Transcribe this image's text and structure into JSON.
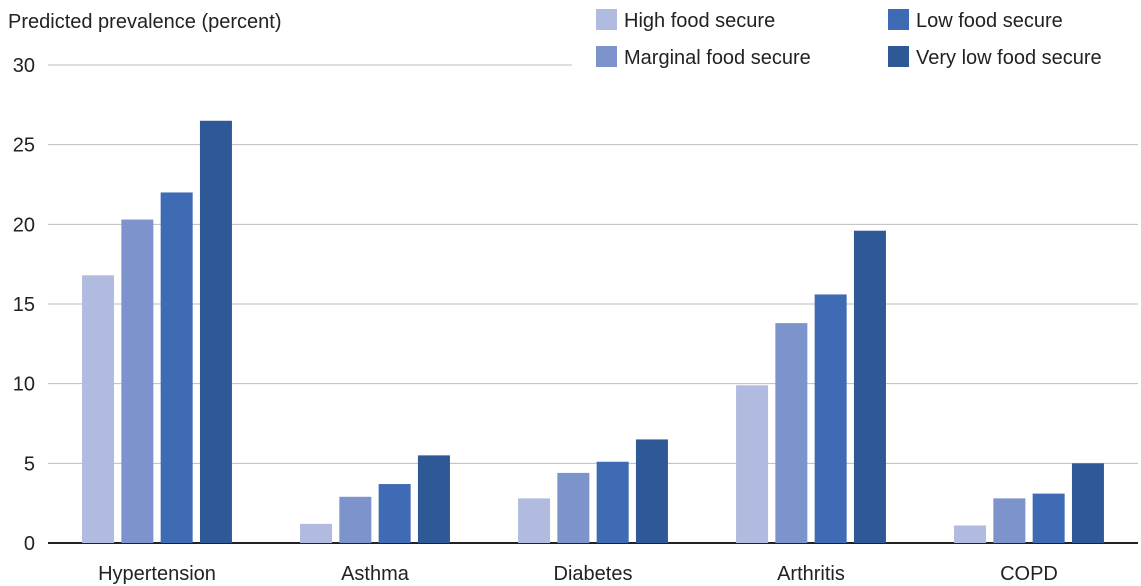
{
  "chart_data": {
    "type": "bar",
    "title": "",
    "ylabel": "Predicted prevalence (percent)",
    "xlabel": "",
    "ylim": [
      0,
      30
    ],
    "yticks": [
      0,
      5,
      10,
      15,
      20,
      25,
      30
    ],
    "grid": true,
    "legend_position": "top-right",
    "categories": [
      "Hypertension",
      "Asthma",
      "Diabetes",
      "Arthritis",
      "COPD"
    ],
    "series": [
      {
        "name": "High food secure",
        "color": "#b0bbdf",
        "values": [
          16.8,
          1.2,
          2.8,
          9.9,
          1.1
        ]
      },
      {
        "name": "Marginal food secure",
        "color": "#7d93cb",
        "values": [
          20.3,
          2.9,
          4.4,
          13.8,
          2.8
        ]
      },
      {
        "name": "Low food secure",
        "color": "#3f6ab4",
        "values": [
          22.0,
          3.7,
          5.1,
          15.6,
          3.1
        ]
      },
      {
        "name": "Very low food secure",
        "color": "#2f5897",
        "values": [
          26.5,
          5.5,
          6.5,
          19.6,
          5.0
        ]
      }
    ]
  }
}
